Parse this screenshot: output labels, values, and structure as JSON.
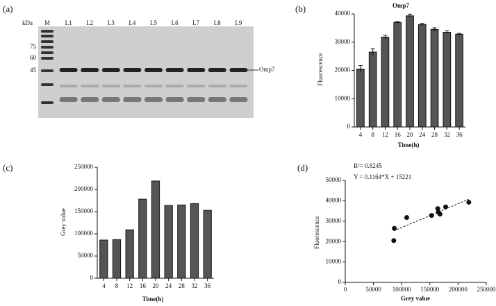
{
  "gel": {
    "label": "(a)",
    "unit": "kDa",
    "lanes": [
      "M",
      "L1",
      "L2",
      "L3",
      "L4",
      "L5",
      "L6",
      "L7",
      "L8",
      "L9"
    ],
    "markers": [
      "75",
      "60",
      "45"
    ],
    "band_label": "Omp7"
  },
  "chart_data": [
    {
      "type": "bar",
      "label": "(b)",
      "title": "Omp7",
      "xlabel": "Time(h)",
      "ylabel": "Fluorescence",
      "categories": [
        "4",
        "8",
        "12",
        "16",
        "20",
        "24",
        "28",
        "32",
        "36"
      ],
      "values": [
        20500,
        26500,
        31800,
        37000,
        39300,
        36200,
        34500,
        33500,
        32800
      ],
      "errors": [
        1200,
        1200,
        700,
        300,
        600,
        500,
        600,
        500,
        300
      ],
      "color": "#555555",
      "ylim": [
        0,
        40000
      ],
      "yticks": [
        0,
        10000,
        20000,
        30000,
        40000
      ]
    },
    {
      "type": "bar",
      "label": "(c)",
      "xlabel": "Time(h)",
      "ylabel": "Grey value",
      "categories": [
        "4",
        "8",
        "12",
        "16",
        "20",
        "24",
        "28",
        "32",
        "36"
      ],
      "values": [
        86000,
        87000,
        109000,
        178000,
        219000,
        164000,
        165000,
        168000,
        153000
      ],
      "color": "#555555",
      "ylim": [
        0,
        250000
      ],
      "yticks": [
        0,
        50000,
        100000,
        150000,
        200000,
        250000
      ]
    },
    {
      "type": "scatter",
      "label": "(d)",
      "xlabel": "Grey value",
      "ylabel": "Fluorescence",
      "annotations": [
        "R²= 0.8245",
        "Y = 0.1164*X + 15221"
      ],
      "x": [
        86000,
        87000,
        109000,
        178000,
        219000,
        164000,
        165000,
        168000,
        153000
      ],
      "values": [
        20500,
        26500,
        31800,
        37000,
        39300,
        36200,
        34500,
        33500,
        32800
      ],
      "color": "#111111",
      "xlim": [
        0,
        250000
      ],
      "xticks": [
        0,
        50000,
        100000,
        150000,
        200000,
        250000
      ],
      "ylim": [
        0,
        50000
      ],
      "yticks": [
        0,
        10000,
        20000,
        30000,
        40000,
        50000
      ],
      "trendline": true
    }
  ]
}
